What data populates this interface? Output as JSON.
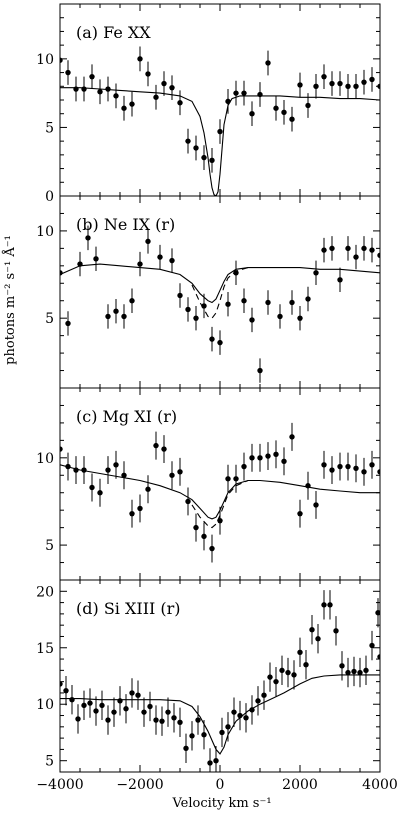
{
  "figure": {
    "xlabel": "Velocity km s⁻¹",
    "ylabel": "photons m⁻² s⁻¹ Å⁻¹"
  },
  "chart_data": [
    {
      "type": "scatter",
      "title": "(a) Fe XX",
      "xlim": [
        -4000,
        4000
      ],
      "ylim": [
        0,
        14
      ],
      "xticks": [
        -4000,
        -2000,
        0,
        2000,
        4000
      ],
      "yticks": [
        0,
        5,
        10
      ],
      "series": [
        {
          "kind": "points_with_errorbars",
          "x": [
            -4000,
            -3800,
            -3600,
            -3400,
            -3200,
            -3000,
            -2800,
            -2600,
            -2400,
            -2200,
            -2000,
            -1800,
            -1600,
            -1400,
            -1200,
            -1000,
            -800,
            -600,
            -400,
            -200,
            0,
            200,
            400,
            600,
            800,
            1000,
            1200,
            1400,
            1600,
            1800,
            2000,
            2200,
            2400,
            2600,
            2800,
            3000,
            3200,
            3400,
            3600,
            3800,
            4000
          ],
          "y": [
            9.9,
            9.0,
            7.8,
            7.8,
            8.7,
            7.6,
            7.8,
            7.3,
            6.4,
            6.7,
            10.0,
            8.9,
            7.2,
            8.2,
            7.9,
            6.8,
            4.0,
            3.5,
            2.8,
            2.6,
            4.7,
            6.9,
            7.5,
            7.5,
            6.0,
            7.4,
            9.7,
            6.4,
            6.1,
            5.6,
            8.1,
            6.6,
            8.0,
            8.7,
            8.2,
            8.2,
            8.0,
            8.0,
            8.3,
            8.5,
            8.0
          ],
          "yerr": 0.9
        },
        {
          "kind": "model_line",
          "style": "solid",
          "x": [
            -4000,
            -3500,
            -3000,
            -2500,
            -2000,
            -1500,
            -1000,
            -700,
            -500,
            -400,
            -300,
            -250,
            -200,
            -150,
            -100,
            -50,
            0,
            50,
            100,
            200,
            300,
            500,
            700,
            1000,
            1500,
            2000,
            2500,
            3000,
            3500,
            4000
          ],
          "y": [
            7.9,
            7.9,
            7.8,
            7.7,
            7.6,
            7.5,
            7.3,
            6.9,
            5.8,
            4.6,
            2.8,
            1.6,
            0.6,
            0.1,
            0.0,
            0.3,
            1.6,
            3.4,
            5.2,
            6.6,
            7.1,
            7.3,
            7.3,
            7.3,
            7.3,
            7.2,
            7.2,
            7.1,
            7.1,
            7.0
          ]
        }
      ]
    },
    {
      "type": "scatter",
      "title": "(b) Ne IX (r)",
      "xlim": [
        -4000,
        4000
      ],
      "ylim": [
        1,
        12
      ],
      "xticks": [
        -4000,
        -2000,
        0,
        2000,
        4000
      ],
      "yticks": [
        5,
        10
      ],
      "series": [
        {
          "kind": "points_with_errorbars",
          "x": [
            -4000,
            -3800,
            -3500,
            -3300,
            -3100,
            -2800,
            -2600,
            -2400,
            -2200,
            -2000,
            -1800,
            -1500,
            -1200,
            -1000,
            -800,
            -600,
            -400,
            -200,
            0,
            200,
            400,
            600,
            800,
            1000,
            1200,
            1500,
            1800,
            2000,
            2200,
            2400,
            2600,
            2800,
            3000,
            3200,
            3400,
            3600,
            3800,
            4000
          ],
          "y": [
            7.6,
            4.7,
            8.1,
            9.6,
            8.4,
            5.1,
            5.4,
            5.1,
            6.0,
            8.1,
            9.4,
            8.5,
            8.3,
            6.3,
            5.5,
            5.0,
            5.7,
            3.8,
            3.6,
            5.8,
            7.6,
            6.0,
            4.9,
            2.0,
            5.9,
            5.1,
            5.9,
            5.0,
            6.1,
            7.6,
            8.9,
            9.0,
            7.2,
            9.0,
            8.5,
            9.0,
            8.9,
            8.6
          ],
          "yerr": 0.7
        },
        {
          "kind": "model_line",
          "style": "solid",
          "x": [
            -4000,
            -3500,
            -3000,
            -2500,
            -2000,
            -1500,
            -1000,
            -700,
            -500,
            -300,
            -200,
            -100,
            0,
            100,
            200,
            400,
            700,
            1000,
            1500,
            2000,
            2500,
            3000,
            3500,
            4000
          ],
          "y": [
            7.5,
            8.0,
            8.1,
            8.0,
            7.9,
            7.8,
            7.5,
            7.0,
            6.4,
            6.0,
            5.9,
            6.1,
            6.6,
            7.1,
            7.5,
            7.8,
            7.9,
            7.9,
            7.9,
            7.9,
            7.8,
            7.8,
            7.7,
            7.6
          ]
        },
        {
          "kind": "model_line",
          "style": "dashed",
          "x": [
            -700,
            -500,
            -300,
            -200,
            -100,
            0,
            100,
            200,
            400,
            700
          ],
          "y": [
            6.9,
            5.9,
            5.1,
            5.0,
            5.3,
            6.0,
            6.8,
            7.3,
            7.7,
            7.9
          ]
        }
      ]
    },
    {
      "type": "scatter",
      "title": "(c) Mg XI (r)",
      "xlim": [
        -4000,
        4000
      ],
      "ylim": [
        3,
        14
      ],
      "xticks": [
        -4000,
        -2000,
        0,
        2000,
        4000
      ],
      "yticks": [
        5,
        10
      ],
      "series": [
        {
          "kind": "points_with_errorbars",
          "x": [
            -4000,
            -3800,
            -3600,
            -3400,
            -3200,
            -3000,
            -2800,
            -2600,
            -2400,
            -2200,
            -2000,
            -1800,
            -1600,
            -1400,
            -1200,
            -1000,
            -800,
            -600,
            -400,
            -200,
            0,
            200,
            400,
            600,
            800,
            1000,
            1200,
            1400,
            1600,
            1800,
            2000,
            2200,
            2400,
            2600,
            2800,
            3000,
            3200,
            3400,
            3600,
            3800,
            4000
          ],
          "y": [
            10.5,
            9.5,
            9.3,
            9.3,
            8.3,
            8.0,
            9.3,
            9.6,
            9.0,
            6.8,
            7.1,
            8.2,
            10.7,
            10.5,
            9.0,
            9.2,
            7.5,
            6.0,
            5.5,
            4.8,
            6.4,
            8.8,
            8.8,
            9.5,
            10.0,
            10.0,
            10.1,
            10.2,
            9.8,
            11.2,
            6.8,
            8.4,
            7.3,
            9.6,
            9.3,
            9.5,
            9.5,
            9.4,
            9.2,
            9.6,
            9.2
          ],
          "yerr": 0.8
        },
        {
          "kind": "model_line",
          "style": "solid",
          "x": [
            -4000,
            -3500,
            -3000,
            -2500,
            -2000,
            -1500,
            -1000,
            -700,
            -500,
            -300,
            -200,
            -100,
            0,
            100,
            200,
            400,
            700,
            1000,
            1500,
            2000,
            2500,
            3000,
            3500,
            4000
          ],
          "y": [
            9.6,
            9.3,
            9.1,
            8.9,
            8.7,
            8.4,
            8.0,
            7.6,
            7.1,
            6.6,
            6.5,
            6.6,
            7.0,
            7.5,
            8.0,
            8.5,
            8.7,
            8.7,
            8.6,
            8.4,
            8.2,
            8.1,
            8.0,
            8.0
          ]
        },
        {
          "kind": "model_line",
          "style": "dashed",
          "x": [
            -700,
            -500,
            -300,
            -200,
            -100,
            0,
            100,
            200,
            400,
            700
          ],
          "y": [
            7.3,
            6.6,
            6.1,
            6.0,
            6.2,
            6.7,
            7.3,
            7.9,
            8.4,
            8.7
          ]
        }
      ]
    },
    {
      "type": "scatter",
      "title": "(d) Si XIII (r)",
      "xlim": [
        -4000,
        4000
      ],
      "ylim": [
        4,
        21
      ],
      "xticks": [
        -4000,
        -2000,
        0,
        2000,
        4000
      ],
      "yticks": [
        5,
        10,
        15,
        20
      ],
      "series": [
        {
          "kind": "points_with_errorbars",
          "x": [
            -4000,
            -3850,
            -3700,
            -3550,
            -3400,
            -3250,
            -3100,
            -2950,
            -2800,
            -2650,
            -2500,
            -2350,
            -2200,
            -2050,
            -1900,
            -1750,
            -1600,
            -1450,
            -1300,
            -1150,
            -1000,
            -850,
            -700,
            -550,
            -400,
            -250,
            -100,
            50,
            200,
            350,
            500,
            650,
            800,
            950,
            1100,
            1250,
            1400,
            1550,
            1700,
            1850,
            2000,
            2150,
            2300,
            2450,
            2600,
            2750,
            2900,
            3050,
            3200,
            3350,
            3500,
            3650,
            3800,
            3950,
            4000
          ],
          "y": [
            11.8,
            11.2,
            10.4,
            8.7,
            9.9,
            10.1,
            9.4,
            9.9,
            8.6,
            9.3,
            10.3,
            9.6,
            11.0,
            10.8,
            9.3,
            9.8,
            8.6,
            8.5,
            9.3,
            8.8,
            8.4,
            6.1,
            7.2,
            8.6,
            7.3,
            4.8,
            5.0,
            7.5,
            8.0,
            9.3,
            9.0,
            8.8,
            9.5,
            10.3,
            10.8,
            12.4,
            12.0,
            13.0,
            12.8,
            12.6,
            14.6,
            13.5,
            16.6,
            15.8,
            18.8,
            18.8,
            16.5,
            13.4,
            12.8,
            12.9,
            12.8,
            13.0,
            15.2,
            18.1,
            14.2
          ],
          "yerr": 1.3
        },
        {
          "kind": "model_line",
          "style": "solid",
          "x": [
            -4000,
            -3500,
            -3000,
            -2500,
            -2000,
            -1500,
            -1000,
            -700,
            -500,
            -300,
            -200,
            -100,
            0,
            100,
            200,
            400,
            700,
            1000,
            1300,
            1600,
            2000,
            2300,
            2600,
            3000,
            3500,
            4000
          ],
          "y": [
            10.5,
            10.5,
            10.4,
            10.4,
            10.4,
            10.4,
            10.3,
            9.8,
            8.9,
            7.6,
            6.8,
            6.0,
            5.6,
            6.2,
            7.3,
            8.5,
            9.4,
            10.0,
            10.5,
            11.0,
            11.8,
            12.3,
            12.5,
            12.6,
            12.6,
            12.6
          ]
        }
      ]
    }
  ]
}
